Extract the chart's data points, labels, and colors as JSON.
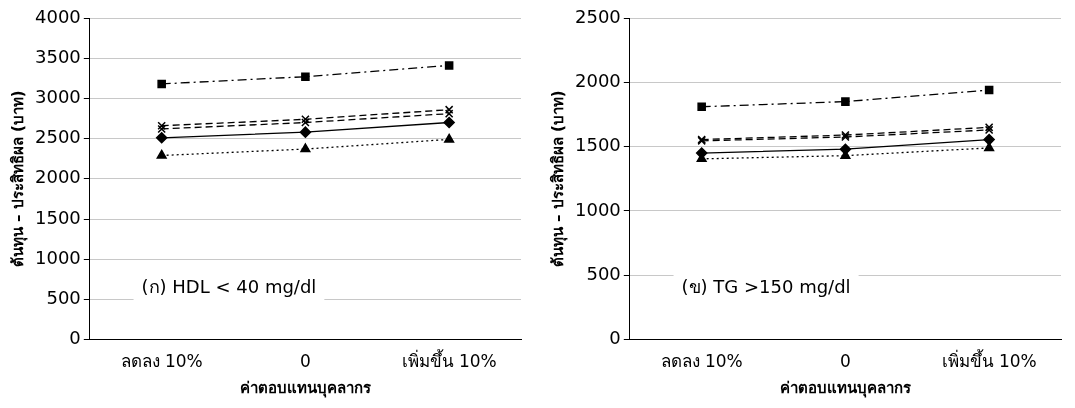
{
  "chart_data": [
    {
      "type": "line",
      "categories": [
        "ลดลง 10%",
        "0",
        "เพิ่มขึ้น 10%"
      ],
      "xlabel": "ค่าตอบแทนบุคลากร",
      "ylabel": "ต้นทุน – ประสิทธิผล (บาท)",
      "ylim": [
        0,
        4000
      ],
      "yticks": [
        0,
        500,
        1000,
        1500,
        2000,
        2500,
        3000,
        3500,
        4000
      ],
      "grid": "y",
      "legend": false,
      "annotations": [
        "(ก) HDL < 40 mg/dl"
      ],
      "series": [
        {
          "color": "#000000",
          "marker": "diamond",
          "line_style": "solid",
          "values": [
            2510,
            2580,
            2700
          ]
        },
        {
          "color": "#000000",
          "marker": "square",
          "line_style": "dashdot",
          "values": [
            3180,
            3270,
            3410
          ]
        },
        {
          "color": "#000000",
          "marker": "triangle",
          "line_style": "dotted",
          "values": [
            2290,
            2370,
            2490
          ]
        },
        {
          "color": "#000000",
          "marker": "cross",
          "line_style": "dashed",
          "values": [
            2620,
            2700,
            2810
          ]
        },
        {
          "color": "#000000",
          "marker": "cross",
          "line_style": "dashed",
          "values": [
            2660,
            2740,
            2860
          ]
        }
      ]
    },
    {
      "type": "line",
      "categories": [
        "ลดลง 10%",
        "0",
        "เพิ่มขึ้น 10%"
      ],
      "xlabel": "ค่าตอบแทนบุคลากร",
      "ylabel": "ต้นทุน – ประสิทธิผล (บาท)",
      "ylim": [
        0,
        2500
      ],
      "yticks": [
        0,
        500,
        1000,
        1500,
        2000,
        2500
      ],
      "grid": "y",
      "legend": false,
      "annotations": [
        "(ข) TG >150 mg/dl"
      ],
      "series": [
        {
          "color": "#000000",
          "marker": "diamond",
          "line_style": "solid",
          "values": [
            1450,
            1480,
            1555
          ]
        },
        {
          "color": "#000000",
          "marker": "square",
          "line_style": "dashdot",
          "values": [
            1810,
            1850,
            1940
          ]
        },
        {
          "color": "#000000",
          "marker": "triangle",
          "line_style": "dotted",
          "values": [
            1405,
            1430,
            1490
          ]
        },
        {
          "color": "#000000",
          "marker": "cross",
          "line_style": "dashed",
          "values": [
            1545,
            1575,
            1630
          ]
        },
        {
          "color": "#000000",
          "marker": "cross",
          "line_style": "dashed",
          "values": [
            1555,
            1590,
            1650
          ]
        }
      ]
    }
  ]
}
